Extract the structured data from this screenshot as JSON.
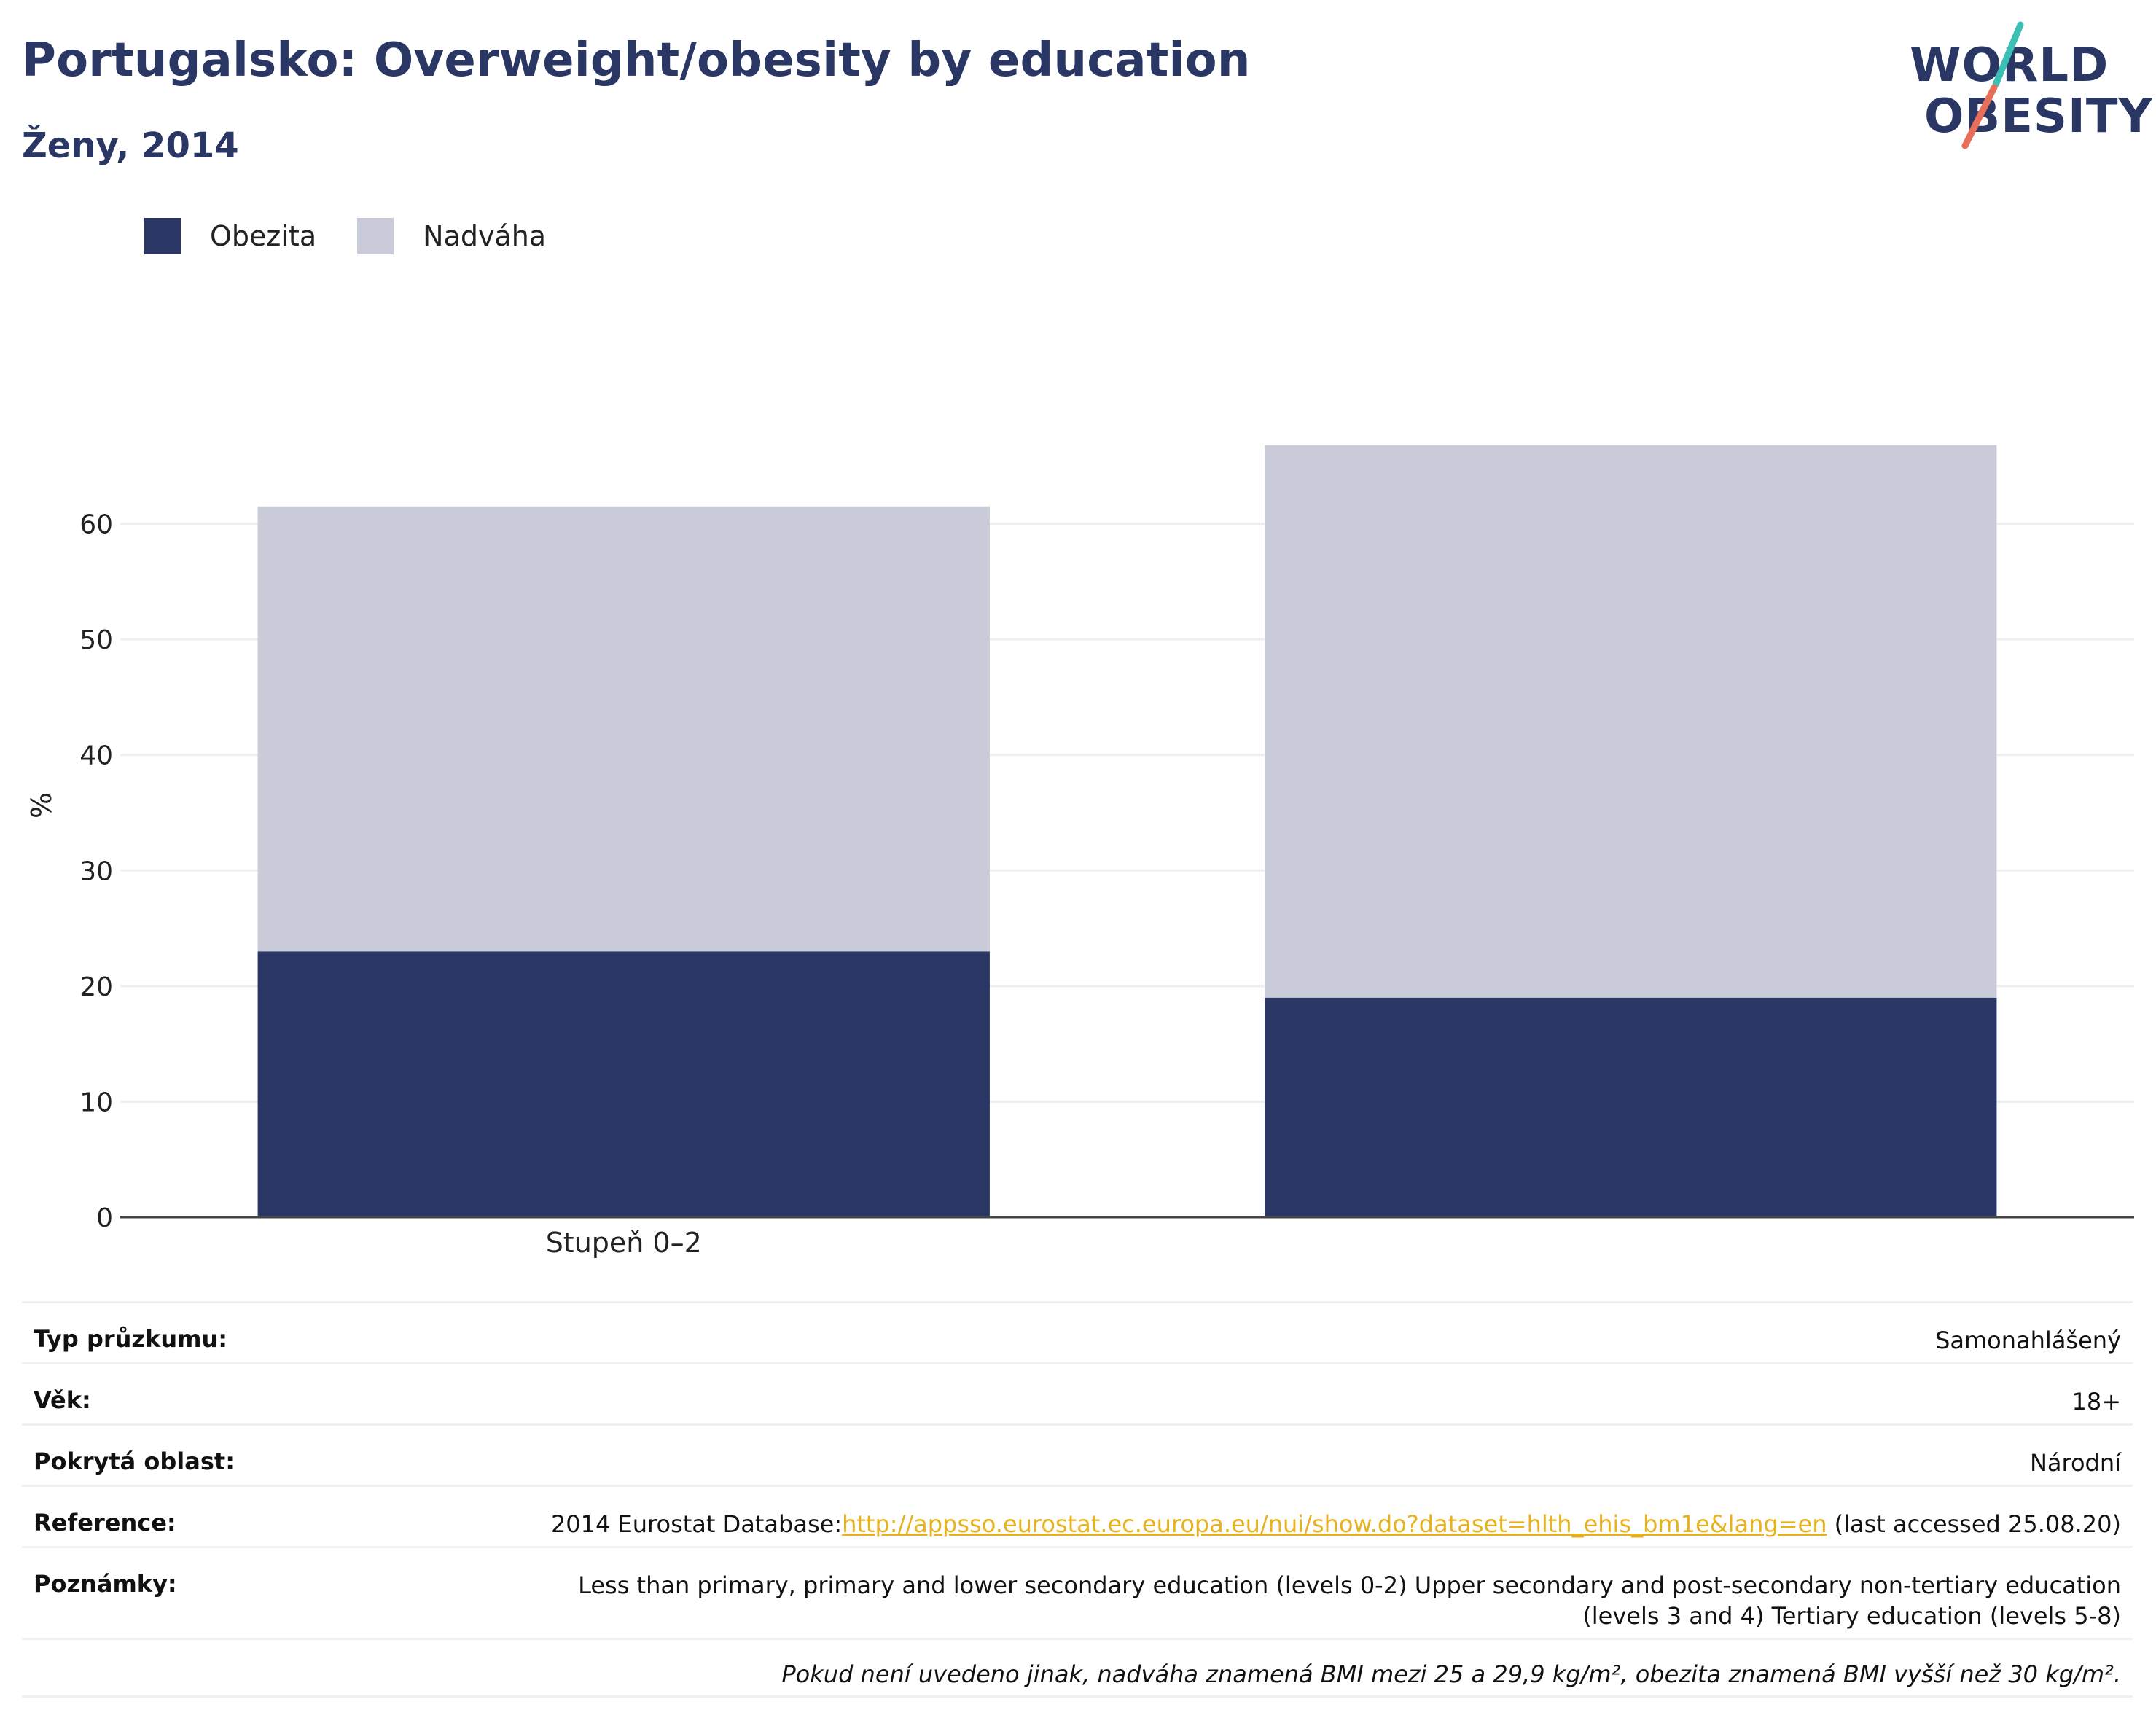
{
  "header": {
    "title": "Portugalsko: Overweight/obesity by education",
    "subtitle": "Ženy, 2014"
  },
  "logo": {
    "line1": "WORLD",
    "line2": "OBESITY",
    "colors": {
      "text": "#2a3764",
      "slash_top": "#3cbfb4",
      "slash_bottom": "#e8705a"
    }
  },
  "legend": [
    {
      "label": "Obezita",
      "color": "#2a3764"
    },
    {
      "label": "Nadváha",
      "color": "#c9ccd8"
    }
  ],
  "chart_data": {
    "type": "bar",
    "stacked": true,
    "categories": [
      "Stupeň 0–2",
      ""
    ],
    "series": [
      {
        "name": "Obezita",
        "color": "#2a3764",
        "values": [
          23.0,
          19.0
        ]
      },
      {
        "name": "Nadváha",
        "color": "#c9ccd8",
        "values": [
          38.5,
          47.8
        ]
      }
    ],
    "ylabel": "%",
    "ylim": [
      0,
      70
    ],
    "yticks": [
      0,
      10,
      20,
      30,
      40,
      50,
      60
    ],
    "grid": true,
    "legend_position": "top-left"
  },
  "info": {
    "rows": [
      {
        "key": "Typ průzkumu:",
        "value": "Samonahlášený"
      },
      {
        "key": "Věk:",
        "value": "18+"
      },
      {
        "key": "Pokrytá oblast:",
        "value": "Národní"
      }
    ],
    "reference": {
      "key": "Reference:",
      "prefix": "2014 Eurostat Database:",
      "link": "http://appsso.eurostat.ec.europa.eu/nui/show.do?dataset=hlth_ehis_bm1e&lang=en",
      "suffix": " (last accessed 25.08.20)"
    },
    "notes": {
      "key": "Poznámky:",
      "line1": "Less than primary, primary and lower secondary education (levels 0-2) Upper secondary and post-secondary non-tertiary education",
      "line2": "(levels 3 and 4) Tertiary education (levels 5-8)"
    },
    "footnote": "Pokud není uvedeno jinak, nadváha znamená BMI mezi 25 a 29,9 kg/m², obezita znamená BMI vyšší než 30 kg/m²."
  }
}
